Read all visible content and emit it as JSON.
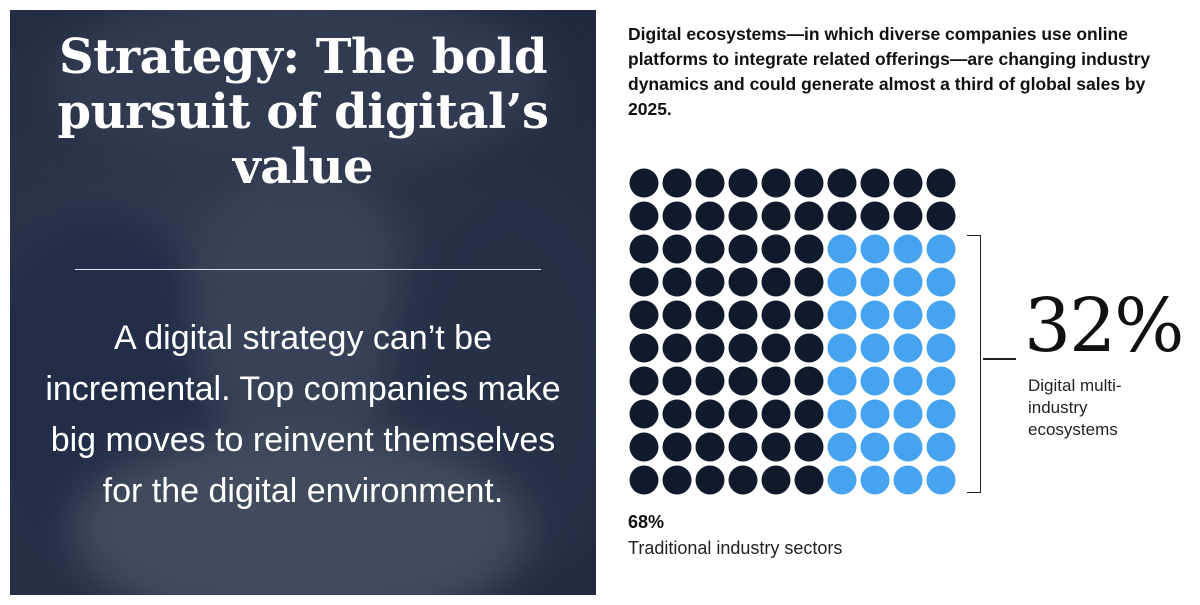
{
  "hero": {
    "title": "Strategy: The bold pursuit of digital’s value",
    "subtitle": "A digital strategy can’t be incremental. Top companies make big moves to reinvent themselves for the digital environment."
  },
  "description": "Digital ecosystems—in which diverse companies use online platforms to integrate related offerings—are changing industry dynamics and could generate almost a third of global sales by 2025.",
  "colors": {
    "traditional": "#0f1a2c",
    "ecosystem": "#46a3f0",
    "text": "#111111"
  },
  "chart_data": {
    "type": "waffle",
    "grid": {
      "rows": 10,
      "cols": 10
    },
    "series": [
      {
        "name": "Traditional industry sectors",
        "percent_label": "68%",
        "value": 68
      },
      {
        "name": "Digital multi-industry ecosystems",
        "percent_label": "32%",
        "value": 32
      }
    ]
  },
  "annotations": {
    "big_percent": "32%",
    "big_label": "Digital multi-industry ecosystems",
    "small_percent": "68%",
    "small_label": "Traditional industry sectors"
  }
}
